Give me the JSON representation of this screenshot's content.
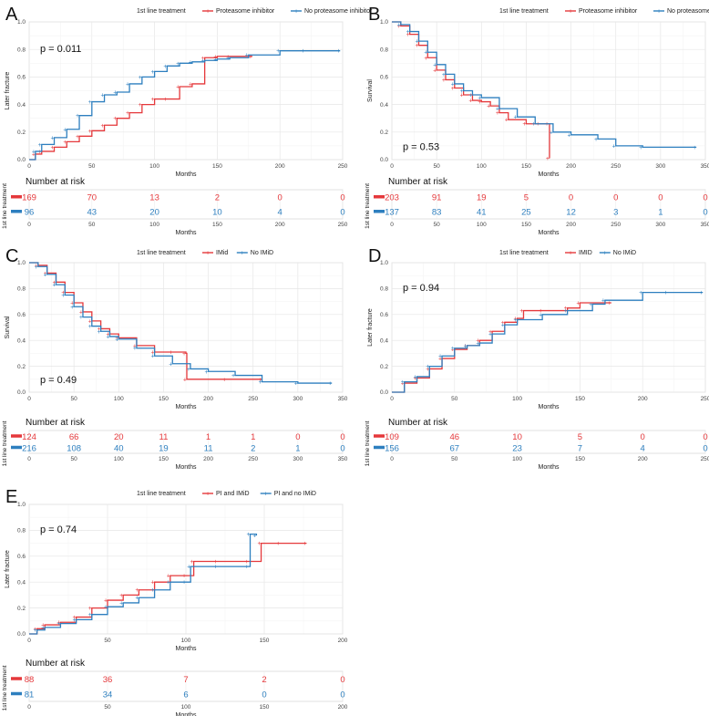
{
  "colors": {
    "red": "#e5383b",
    "blue": "#2d7fbf"
  },
  "panels": [
    {
      "letter": "A",
      "legend_title": "1st line treatment",
      "legend_labels": [
        "Proteasome inhibitor",
        "No proteasome inhibitor"
      ],
      "ylabel": "Later fracture",
      "xlabel": "Months",
      "pvalue": "p = 0.011",
      "pvalue_pos": "top-left",
      "xlim": [
        0,
        250
      ],
      "xticks": [
        0,
        50,
        100,
        150,
        200,
        250
      ],
      "ylim": [
        0,
        1
      ],
      "yticks": [
        0.0,
        0.2,
        0.4,
        0.6,
        0.8,
        1.0
      ],
      "type": "line",
      "series": [
        {
          "name": "Proteasome inhibitor",
          "color": "red",
          "x": [
            0,
            5,
            10,
            20,
            30,
            40,
            50,
            60,
            70,
            80,
            90,
            100,
            110,
            120,
            130,
            140,
            150,
            160,
            178
          ],
          "y": [
            0,
            0.04,
            0.06,
            0.09,
            0.13,
            0.17,
            0.21,
            0.25,
            0.3,
            0.34,
            0.4,
            0.44,
            0.44,
            0.53,
            0.55,
            0.74,
            0.75,
            0.75,
            0.75
          ]
        },
        {
          "name": "No proteasome inhibitor",
          "color": "blue",
          "x": [
            0,
            5,
            10,
            20,
            30,
            40,
            50,
            60,
            70,
            80,
            90,
            100,
            110,
            120,
            130,
            140,
            150,
            160,
            175,
            200,
            220,
            248
          ],
          "y": [
            0,
            0.06,
            0.11,
            0.16,
            0.22,
            0.32,
            0.42,
            0.47,
            0.49,
            0.55,
            0.6,
            0.64,
            0.68,
            0.7,
            0.71,
            0.72,
            0.73,
            0.74,
            0.76,
            0.79,
            0.79,
            0.79
          ]
        }
      ],
      "risk": {
        "title": "Number at risk",
        "side_label": "1st line treatment",
        "xticks": [
          0,
          50,
          100,
          150,
          200,
          250
        ],
        "rows": [
          {
            "color": "red",
            "values": [
              "169",
              "70",
              "13",
              "2",
              "0",
              "0"
            ]
          },
          {
            "color": "blue",
            "values": [
              "96",
              "43",
              "20",
              "10",
              "4",
              "0"
            ]
          }
        ]
      }
    },
    {
      "letter": "B",
      "legend_title": "1st line treatment",
      "legend_labels": [
        "Proteasome inhibitor",
        "No proteasome inhibitor"
      ],
      "ylabel": "Survival",
      "xlabel": "Months",
      "pvalue": "p = 0.53",
      "pvalue_pos": "bottom-left",
      "xlim": [
        0,
        350
      ],
      "xticks": [
        0,
        50,
        100,
        150,
        200,
        250,
        300,
        350
      ],
      "ylim": [
        0,
        1
      ],
      "yticks": [
        0.0,
        0.2,
        0.4,
        0.6,
        0.8,
        1.0
      ],
      "type": "line",
      "series": [
        {
          "name": "Proteasome inhibitor",
          "color": "red",
          "x": [
            0,
            10,
            20,
            30,
            40,
            50,
            60,
            70,
            80,
            90,
            100,
            110,
            120,
            130,
            150,
            165,
            175,
            176
          ],
          "y": [
            1,
            0.97,
            0.91,
            0.83,
            0.74,
            0.65,
            0.58,
            0.52,
            0.47,
            0.43,
            0.42,
            0.39,
            0.34,
            0.29,
            0.26,
            0.26,
            0.26,
            0.01
          ]
        },
        {
          "name": "No proteasome inhibitor",
          "color": "blue",
          "x": [
            0,
            10,
            20,
            30,
            40,
            50,
            60,
            70,
            80,
            90,
            100,
            120,
            140,
            160,
            180,
            200,
            230,
            250,
            280,
            340
          ],
          "y": [
            1,
            0.98,
            0.93,
            0.86,
            0.78,
            0.69,
            0.62,
            0.55,
            0.5,
            0.47,
            0.45,
            0.37,
            0.31,
            0.26,
            0.2,
            0.18,
            0.15,
            0.1,
            0.09,
            0.09
          ]
        }
      ],
      "risk": {
        "title": "Number at risk",
        "side_label": "1st line treatment",
        "xticks": [
          0,
          50,
          100,
          150,
          200,
          250,
          300,
          350
        ],
        "rows": [
          {
            "color": "red",
            "values": [
              "203",
              "91",
              "19",
              "5",
              "0",
              "0",
              "0",
              "0"
            ]
          },
          {
            "color": "blue",
            "values": [
              "137",
              "83",
              "41",
              "25",
              "12",
              "3",
              "1",
              "0"
            ]
          }
        ]
      }
    },
    {
      "letter": "C",
      "legend_title": "1st line treatment",
      "legend_labels": [
        "IMid",
        "No IMiD"
      ],
      "ylabel": "Survival",
      "xlabel": "Months",
      "pvalue": "p = 0.49",
      "pvalue_pos": "bottom-left",
      "xlim": [
        0,
        350
      ],
      "xticks": [
        0,
        50,
        100,
        150,
        200,
        250,
        300,
        350
      ],
      "ylim": [
        0,
        1
      ],
      "yticks": [
        0.0,
        0.2,
        0.4,
        0.6,
        0.8,
        1.0
      ],
      "type": "line",
      "series": [
        {
          "name": "IMid",
          "color": "red",
          "x": [
            0,
            10,
            20,
            30,
            40,
            50,
            60,
            70,
            80,
            90,
            100,
            120,
            140,
            160,
            175,
            176,
            220,
            260
          ],
          "y": [
            1,
            0.98,
            0.92,
            0.85,
            0.77,
            0.69,
            0.62,
            0.55,
            0.49,
            0.45,
            0.42,
            0.36,
            0.31,
            0.31,
            0.3,
            0.1,
            0.1,
            0.1
          ]
        },
        {
          "name": "No IMiD",
          "color": "blue",
          "x": [
            0,
            10,
            20,
            30,
            40,
            50,
            60,
            70,
            80,
            90,
            100,
            120,
            140,
            160,
            180,
            200,
            230,
            260,
            300,
            338
          ],
          "y": [
            1,
            0.97,
            0.91,
            0.83,
            0.75,
            0.66,
            0.58,
            0.51,
            0.47,
            0.43,
            0.41,
            0.34,
            0.28,
            0.22,
            0.18,
            0.16,
            0.13,
            0.08,
            0.07,
            0.07
          ]
        }
      ],
      "risk": {
        "title": "Number at risk",
        "side_label": "1st line treatment",
        "xticks": [
          0,
          50,
          100,
          150,
          200,
          250,
          300,
          350
        ],
        "rows": [
          {
            "color": "red",
            "values": [
              "124",
              "66",
              "20",
              "11",
              "1",
              "1",
              "0",
              "0"
            ]
          },
          {
            "color": "blue",
            "values": [
              "216",
              "108",
              "40",
              "19",
              "11",
              "2",
              "1",
              "0"
            ]
          }
        ]
      }
    },
    {
      "letter": "D",
      "legend_title": "1st line treatment",
      "legend_labels": [
        "IMID",
        "No IMiD"
      ],
      "ylabel": "Later fracture",
      "xlabel": "Months",
      "pvalue": "p = 0.94",
      "pvalue_pos": "top-left",
      "xlim": [
        0,
        250
      ],
      "xticks": [
        0,
        50,
        100,
        150,
        200,
        250
      ],
      "ylim": [
        0,
        1
      ],
      "yticks": [
        0.0,
        0.2,
        0.4,
        0.6,
        0.8,
        1.0
      ],
      "type": "line",
      "series": [
        {
          "name": "IMID",
          "color": "red",
          "x": [
            0,
            10,
            20,
            30,
            40,
            50,
            60,
            70,
            80,
            90,
            100,
            105,
            120,
            140,
            150,
            175
          ],
          "y": [
            0,
            0.07,
            0.11,
            0.18,
            0.26,
            0.33,
            0.36,
            0.4,
            0.47,
            0.54,
            0.57,
            0.63,
            0.63,
            0.65,
            0.69,
            0.69
          ]
        },
        {
          "name": "No IMiD",
          "color": "blue",
          "x": [
            0,
            10,
            20,
            30,
            40,
            50,
            60,
            70,
            80,
            90,
            100,
            120,
            140,
            160,
            170,
            200,
            220,
            248
          ],
          "y": [
            0,
            0.08,
            0.12,
            0.2,
            0.28,
            0.34,
            0.36,
            0.38,
            0.45,
            0.52,
            0.56,
            0.6,
            0.63,
            0.68,
            0.71,
            0.77,
            0.77,
            0.77
          ]
        }
      ],
      "risk": {
        "title": "Number at risk",
        "side_label": "1st line treatment",
        "xticks": [
          0,
          50,
          100,
          150,
          200,
          250
        ],
        "rows": [
          {
            "color": "red",
            "values": [
              "109",
              "46",
              "10",
              "5",
              "0",
              "0"
            ]
          },
          {
            "color": "blue",
            "values": [
              "156",
              "67",
              "23",
              "7",
              "4",
              "0"
            ]
          }
        ]
      }
    },
    {
      "letter": "E",
      "legend_title": "1st line treatment",
      "legend_labels": [
        "PI and IMiD",
        "PI and no IMiD"
      ],
      "ylabel": "Later fracture",
      "xlabel": "Months",
      "pvalue": "p = 0.74",
      "pvalue_pos": "top-left",
      "xlim": [
        0,
        200
      ],
      "xticks": [
        0,
        50,
        100,
        150,
        200
      ],
      "ylim": [
        0,
        1
      ],
      "yticks": [
        0.0,
        0.2,
        0.4,
        0.6,
        0.8,
        1.0
      ],
      "type": "line",
      "series": [
        {
          "name": "PI and IMiD",
          "color": "red",
          "x": [
            0,
            5,
            10,
            20,
            30,
            40,
            50,
            60,
            70,
            80,
            90,
            100,
            105,
            120,
            140,
            148,
            160,
            177
          ],
          "y": [
            0,
            0.04,
            0.07,
            0.09,
            0.13,
            0.2,
            0.26,
            0.3,
            0.34,
            0.4,
            0.45,
            0.45,
            0.56,
            0.56,
            0.56,
            0.7,
            0.7,
            0.7
          ]
        },
        {
          "name": "PI and no IMiD",
          "color": "blue",
          "x": [
            0,
            5,
            10,
            20,
            30,
            40,
            50,
            60,
            70,
            80,
            90,
            100,
            103,
            120,
            140,
            141,
            145
          ],
          "y": [
            0,
            0.03,
            0.05,
            0.08,
            0.11,
            0.15,
            0.21,
            0.24,
            0.28,
            0.34,
            0.4,
            0.4,
            0.52,
            0.52,
            0.52,
            0.77,
            0.76
          ]
        }
      ],
      "risk": {
        "title": "Number at risk",
        "side_label": "1st line treatment",
        "xticks": [
          0,
          50,
          100,
          150,
          200
        ],
        "rows": [
          {
            "color": "red",
            "values": [
              "88",
              "36",
              "7",
              "2",
              "0"
            ]
          },
          {
            "color": "blue",
            "values": [
              "81",
              "34",
              "6",
              "0",
              "0"
            ]
          }
        ]
      }
    }
  ],
  "chart_data": [
    {
      "type": "line",
      "title": "A",
      "xlabel": "Months",
      "ylabel": "Later fracture",
      "xlim": [
        0,
        250
      ],
      "ylim": [
        0,
        1
      ],
      "series": [
        {
          "name": "Proteasome inhibitor",
          "x": [
            0,
            50,
            100,
            150,
            178
          ],
          "y": [
            0,
            0.21,
            0.44,
            0.75,
            0.75
          ]
        },
        {
          "name": "No proteasome inhibitor",
          "x": [
            0,
            50,
            100,
            150,
            248
          ],
          "y": [
            0,
            0.42,
            0.64,
            0.73,
            0.79
          ]
        }
      ]
    },
    {
      "type": "line",
      "title": "B",
      "xlabel": "Months",
      "ylabel": "Survival",
      "xlim": [
        0,
        350
      ],
      "ylim": [
        0,
        1
      ],
      "series": [
        {
          "name": "Proteasome inhibitor",
          "x": [
            0,
            50,
            100,
            150,
            176
          ],
          "y": [
            1,
            0.65,
            0.42,
            0.26,
            0.01
          ]
        },
        {
          "name": "No proteasome inhibitor",
          "x": [
            0,
            50,
            100,
            200,
            340
          ],
          "y": [
            1,
            0.69,
            0.45,
            0.18,
            0.09
          ]
        }
      ]
    },
    {
      "type": "line",
      "title": "C",
      "xlabel": "Months",
      "ylabel": "Survival",
      "xlim": [
        0,
        350
      ],
      "ylim": [
        0,
        1
      ],
      "series": [
        {
          "name": "IMid",
          "x": [
            0,
            50,
            100,
            175,
            260
          ],
          "y": [
            1,
            0.69,
            0.42,
            0.3,
            0.1
          ]
        },
        {
          "name": "No IMiD",
          "x": [
            0,
            50,
            100,
            200,
            338
          ],
          "y": [
            1,
            0.66,
            0.41,
            0.16,
            0.07
          ]
        }
      ]
    },
    {
      "type": "line",
      "title": "D",
      "xlabel": "Months",
      "ylabel": "Later fracture",
      "xlim": [
        0,
        250
      ],
      "ylim": [
        0,
        1
      ],
      "series": [
        {
          "name": "IMID",
          "x": [
            0,
            50,
            100,
            150,
            175
          ],
          "y": [
            0,
            0.33,
            0.57,
            0.69,
            0.69
          ]
        },
        {
          "name": "No IMiD",
          "x": [
            0,
            50,
            100,
            200,
            248
          ],
          "y": [
            0,
            0.34,
            0.56,
            0.77,
            0.77
          ]
        }
      ]
    },
    {
      "type": "line",
      "title": "E",
      "xlabel": "Months",
      "ylabel": "Later fracture",
      "xlim": [
        0,
        200
      ],
      "ylim": [
        0,
        1
      ],
      "series": [
        {
          "name": "PI and IMiD",
          "x": [
            0,
            50,
            100,
            148,
            177
          ],
          "y": [
            0,
            0.26,
            0.45,
            0.7,
            0.7
          ]
        },
        {
          "name": "PI and no IMiD",
          "x": [
            0,
            50,
            100,
            141,
            145
          ],
          "y": [
            0,
            0.21,
            0.4,
            0.77,
            0.76
          ]
        }
      ]
    }
  ]
}
